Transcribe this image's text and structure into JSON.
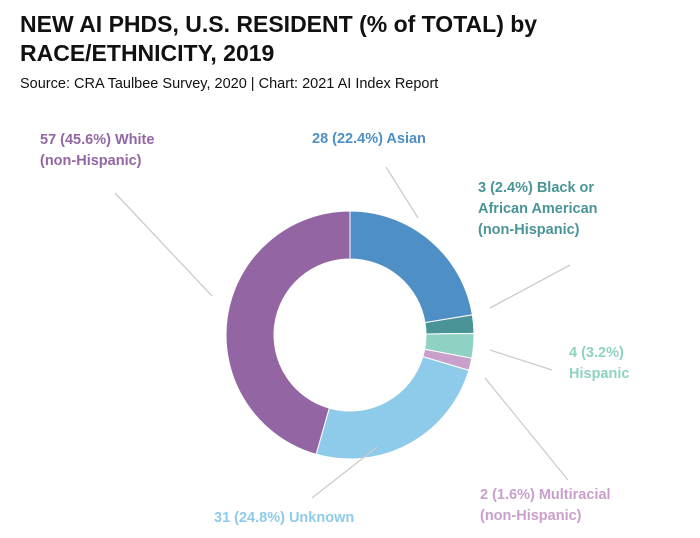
{
  "title": "NEW AI PHDS, U.S. RESIDENT (% of TOTAL) by RACE/ETHNICITY, 2019",
  "subtitle": "Source: CRA Taulbee Survey, 2020 | Chart: 2021 AI Index Report",
  "chart_data": {
    "type": "pie",
    "variant": "donut",
    "title": "NEW AI PHDS, U.S. RESIDENT (% of TOTAL) by RACE/ETHNICITY, 2019",
    "slices": [
      {
        "name": "Asian",
        "value": 28,
        "percent": 22.4,
        "color": "#4e8fc6",
        "label_lines": [
          "28 (22.4%) Asian"
        ]
      },
      {
        "name": "Black or African American (non-Hispanic)",
        "value": 3,
        "percent": 2.4,
        "color": "#4a9497",
        "label_lines": [
          "3 (2.4%) Black or",
          "African American",
          "(non-Hispanic)"
        ]
      },
      {
        "name": "Hispanic",
        "value": 4,
        "percent": 3.2,
        "color": "#8fd1c2",
        "label_lines": [
          "4 (3.2%)",
          "Hispanic"
        ]
      },
      {
        "name": "Multiracial (non-Hispanic)",
        "value": 2,
        "percent": 1.6,
        "color": "#c9a0cc",
        "label_lines": [
          "2 (1.6%) Multiracial",
          "(non-Hispanic)"
        ]
      },
      {
        "name": "Unknown",
        "value": 31,
        "percent": 24.8,
        "color": "#8ecbea",
        "label_lines": [
          "31 (24.8%) Unknown"
        ]
      },
      {
        "name": "White (non-Hispanic)",
        "value": 57,
        "percent": 45.6,
        "color": "#9366a3",
        "label_lines": [
          "57 (45.6%) White",
          "(non-Hispanic)"
        ]
      }
    ]
  }
}
